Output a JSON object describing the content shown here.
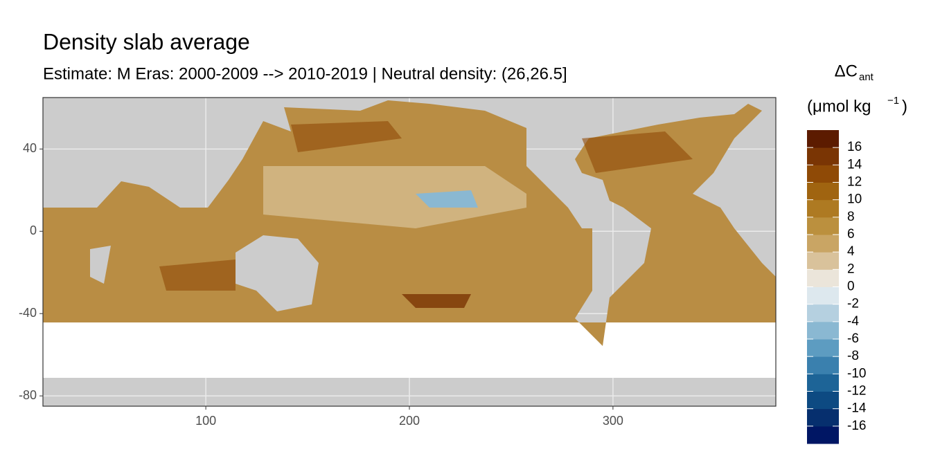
{
  "chart_data": {
    "type": "heatmap",
    "title": "Density slab average",
    "subtitle": "Estimate: M Eras: 2000-2009 --> 2010-2019 | Neutral density: (26,26.5]",
    "xlim": [
      20,
      380
    ],
    "ylim": [
      -85,
      65
    ],
    "xticks": [
      100,
      200,
      300
    ],
    "yticks": [
      -80,
      -40,
      0,
      40
    ],
    "grid": true,
    "legend": {
      "title": [
        "ΔC",
        "ant",
        "(μmol kg",
        "−1",
        ")"
      ],
      "bins": [
        -18,
        -16,
        -14,
        -12,
        -10,
        -8,
        -6,
        -4,
        -2,
        0,
        2,
        4,
        6,
        8,
        10,
        12,
        14,
        16,
        18
      ],
      "colors": [
        "#001664",
        "#062f6e",
        "#0d4a82",
        "#1d6497",
        "#3a80ae",
        "#5d9cc1",
        "#8ab8d2",
        "#b5d0e0",
        "#dde8ee",
        "#ebe5da",
        "#d9c29b",
        "#c9a564",
        "#bb903e",
        "#ae7a22",
        "#a06410",
        "#8f4a06",
        "#7a3504",
        "#5c1b00"
      ],
      "ticks": [
        -16,
        -14,
        -12,
        -10,
        -8,
        -6,
        -4,
        -2,
        0,
        2,
        4,
        6,
        8,
        10,
        12,
        14,
        16
      ]
    }
  }
}
